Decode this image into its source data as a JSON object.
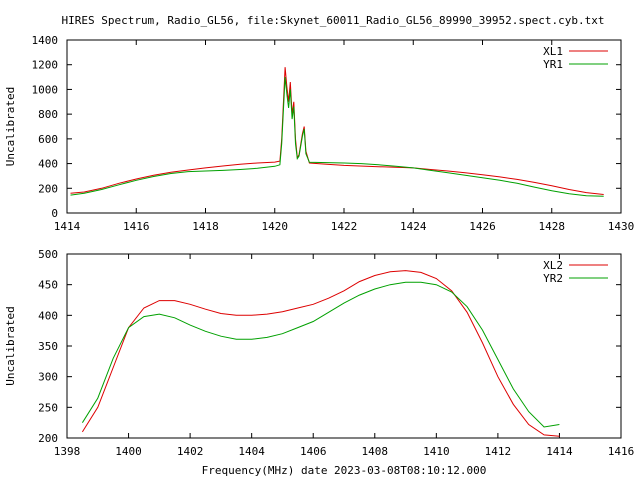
{
  "title": "HIRES Spectrum, Radio_GL56, file:Skynet_60011_Radio_GL56_89990_39952.spect.cyb.txt",
  "chart_data": [
    {
      "type": "line",
      "ylabel": "Uncalibrated",
      "xlabel": "",
      "xlim": [
        1414,
        1430
      ],
      "ylim": [
        0,
        1400
      ],
      "xticks": [
        "1414",
        "1416",
        "1418",
        "1420",
        "1422",
        "1424",
        "1426",
        "1428",
        "1430"
      ],
      "yticks": [
        "0",
        "200",
        "400",
        "600",
        "800",
        "1000",
        "1200",
        "1400"
      ],
      "legend_position": "top-right",
      "series": [
        {
          "name": "XL1",
          "color": "#dd0000",
          "points": [
            [
              1414.1,
              160
            ],
            [
              1414.5,
              170
            ],
            [
              1415,
              200
            ],
            [
              1415.5,
              240
            ],
            [
              1416,
              275
            ],
            [
              1416.5,
              305
            ],
            [
              1417,
              330
            ],
            [
              1417.5,
              348
            ],
            [
              1418,
              365
            ],
            [
              1418.5,
              380
            ],
            [
              1419,
              395
            ],
            [
              1419.5,
              405
            ],
            [
              1420,
              412
            ],
            [
              1420.15,
              420
            ],
            [
              1420.2,
              600
            ],
            [
              1420.3,
              1180
            ],
            [
              1420.35,
              1020
            ],
            [
              1420.4,
              900
            ],
            [
              1420.45,
              1060
            ],
            [
              1420.5,
              800
            ],
            [
              1420.55,
              900
            ],
            [
              1420.6,
              600
            ],
            [
              1420.65,
              450
            ],
            [
              1420.7,
              470
            ],
            [
              1420.8,
              640
            ],
            [
              1420.85,
              700
            ],
            [
              1420.9,
              500
            ],
            [
              1421,
              405
            ],
            [
              1421.5,
              395
            ],
            [
              1422,
              385
            ],
            [
              1423,
              375
            ],
            [
              1424,
              365
            ],
            [
              1424.5,
              352
            ],
            [
              1425,
              340
            ],
            [
              1425.5,
              325
            ],
            [
              1426,
              310
            ],
            [
              1426.5,
              292
            ],
            [
              1427,
              272
            ],
            [
              1427.5,
              248
            ],
            [
              1428,
              220
            ],
            [
              1428.5,
              190
            ],
            [
              1429,
              165
            ],
            [
              1429.5,
              150
            ]
          ]
        },
        {
          "name": "YR1",
          "color": "#00a000",
          "points": [
            [
              1414.1,
              145
            ],
            [
              1414.5,
              160
            ],
            [
              1415,
              190
            ],
            [
              1415.5,
              228
            ],
            [
              1416,
              265
            ],
            [
              1416.5,
              295
            ],
            [
              1417,
              320
            ],
            [
              1417.5,
              335
            ],
            [
              1418,
              340
            ],
            [
              1418.5,
              345
            ],
            [
              1419,
              352
            ],
            [
              1419.5,
              362
            ],
            [
              1420,
              378
            ],
            [
              1420.15,
              390
            ],
            [
              1420.2,
              560
            ],
            [
              1420.3,
              1100
            ],
            [
              1420.35,
              960
            ],
            [
              1420.4,
              850
            ],
            [
              1420.45,
              1000
            ],
            [
              1420.5,
              760
            ],
            [
              1420.55,
              860
            ],
            [
              1420.6,
              560
            ],
            [
              1420.65,
              440
            ],
            [
              1420.7,
              460
            ],
            [
              1420.8,
              620
            ],
            [
              1420.85,
              680
            ],
            [
              1420.9,
              480
            ],
            [
              1421,
              410
            ],
            [
              1421.5,
              408
            ],
            [
              1422,
              405
            ],
            [
              1422.5,
              400
            ],
            [
              1423,
              390
            ],
            [
              1423.5,
              378
            ],
            [
              1424,
              365
            ],
            [
              1424.5,
              345
            ],
            [
              1425,
              325
            ],
            [
              1425.5,
              305
            ],
            [
              1426,
              285
            ],
            [
              1426.5,
              265
            ],
            [
              1427,
              240
            ],
            [
              1427.5,
              210
            ],
            [
              1428,
              180
            ],
            [
              1428.5,
              155
            ],
            [
              1429,
              140
            ],
            [
              1429.5,
              135
            ]
          ]
        }
      ]
    },
    {
      "type": "line",
      "ylabel": "Uncalibrated",
      "xlabel": "Frequency(MHz) date 2023-03-08T08:10:12.000",
      "xlim": [
        1398,
        1416
      ],
      "ylim": [
        200,
        500
      ],
      "xticks": [
        "1398",
        "1400",
        "1402",
        "1404",
        "1406",
        "1408",
        "1410",
        "1412",
        "1414",
        "1416"
      ],
      "yticks": [
        "200",
        "250",
        "300",
        "350",
        "400",
        "450",
        "500"
      ],
      "legend_position": "top-right",
      "series": [
        {
          "name": "XL2",
          "color": "#dd0000",
          "points": [
            [
              1398.5,
              210
            ],
            [
              1399,
              250
            ],
            [
              1399.5,
              315
            ],
            [
              1400,
              380
            ],
            [
              1400.5,
              412
            ],
            [
              1401,
              424
            ],
            [
              1401.5,
              424
            ],
            [
              1402,
              418
            ],
            [
              1402.5,
              410
            ],
            [
              1403,
              403
            ],
            [
              1403.5,
              400
            ],
            [
              1404,
              400
            ],
            [
              1404.5,
              402
            ],
            [
              1405,
              406
            ],
            [
              1405.5,
              412
            ],
            [
              1406,
              418
            ],
            [
              1406.5,
              428
            ],
            [
              1407,
              440
            ],
            [
              1407.5,
              455
            ],
            [
              1408,
              465
            ],
            [
              1408.5,
              471
            ],
            [
              1409,
              473
            ],
            [
              1409.5,
              470
            ],
            [
              1410,
              460
            ],
            [
              1410.5,
              440
            ],
            [
              1411,
              405
            ],
            [
              1411.5,
              355
            ],
            [
              1412,
              300
            ],
            [
              1412.5,
              255
            ],
            [
              1413,
              222
            ],
            [
              1413.5,
              205
            ],
            [
              1414,
              203
            ]
          ]
        },
        {
          "name": "YR2",
          "color": "#00a000",
          "points": [
            [
              1398.5,
              225
            ],
            [
              1399,
              265
            ],
            [
              1399.5,
              330
            ],
            [
              1400,
              380
            ],
            [
              1400.5,
              398
            ],
            [
              1401,
              402
            ],
            [
              1401.5,
              396
            ],
            [
              1402,
              384
            ],
            [
              1402.5,
              374
            ],
            [
              1403,
              366
            ],
            [
              1403.5,
              361
            ],
            [
              1404,
              361
            ],
            [
              1404.5,
              364
            ],
            [
              1405,
              370
            ],
            [
              1405.5,
              380
            ],
            [
              1406,
              390
            ],
            [
              1406.5,
              405
            ],
            [
              1407,
              420
            ],
            [
              1407.5,
              433
            ],
            [
              1408,
              443
            ],
            [
              1408.5,
              450
            ],
            [
              1409,
              454
            ],
            [
              1409.5,
              454
            ],
            [
              1410,
              450
            ],
            [
              1410.5,
              438
            ],
            [
              1411,
              414
            ],
            [
              1411.5,
              376
            ],
            [
              1412,
              328
            ],
            [
              1412.5,
              280
            ],
            [
              1413,
              243
            ],
            [
              1413.5,
              218
            ],
            [
              1414,
              222
            ]
          ]
        }
      ]
    }
  ]
}
